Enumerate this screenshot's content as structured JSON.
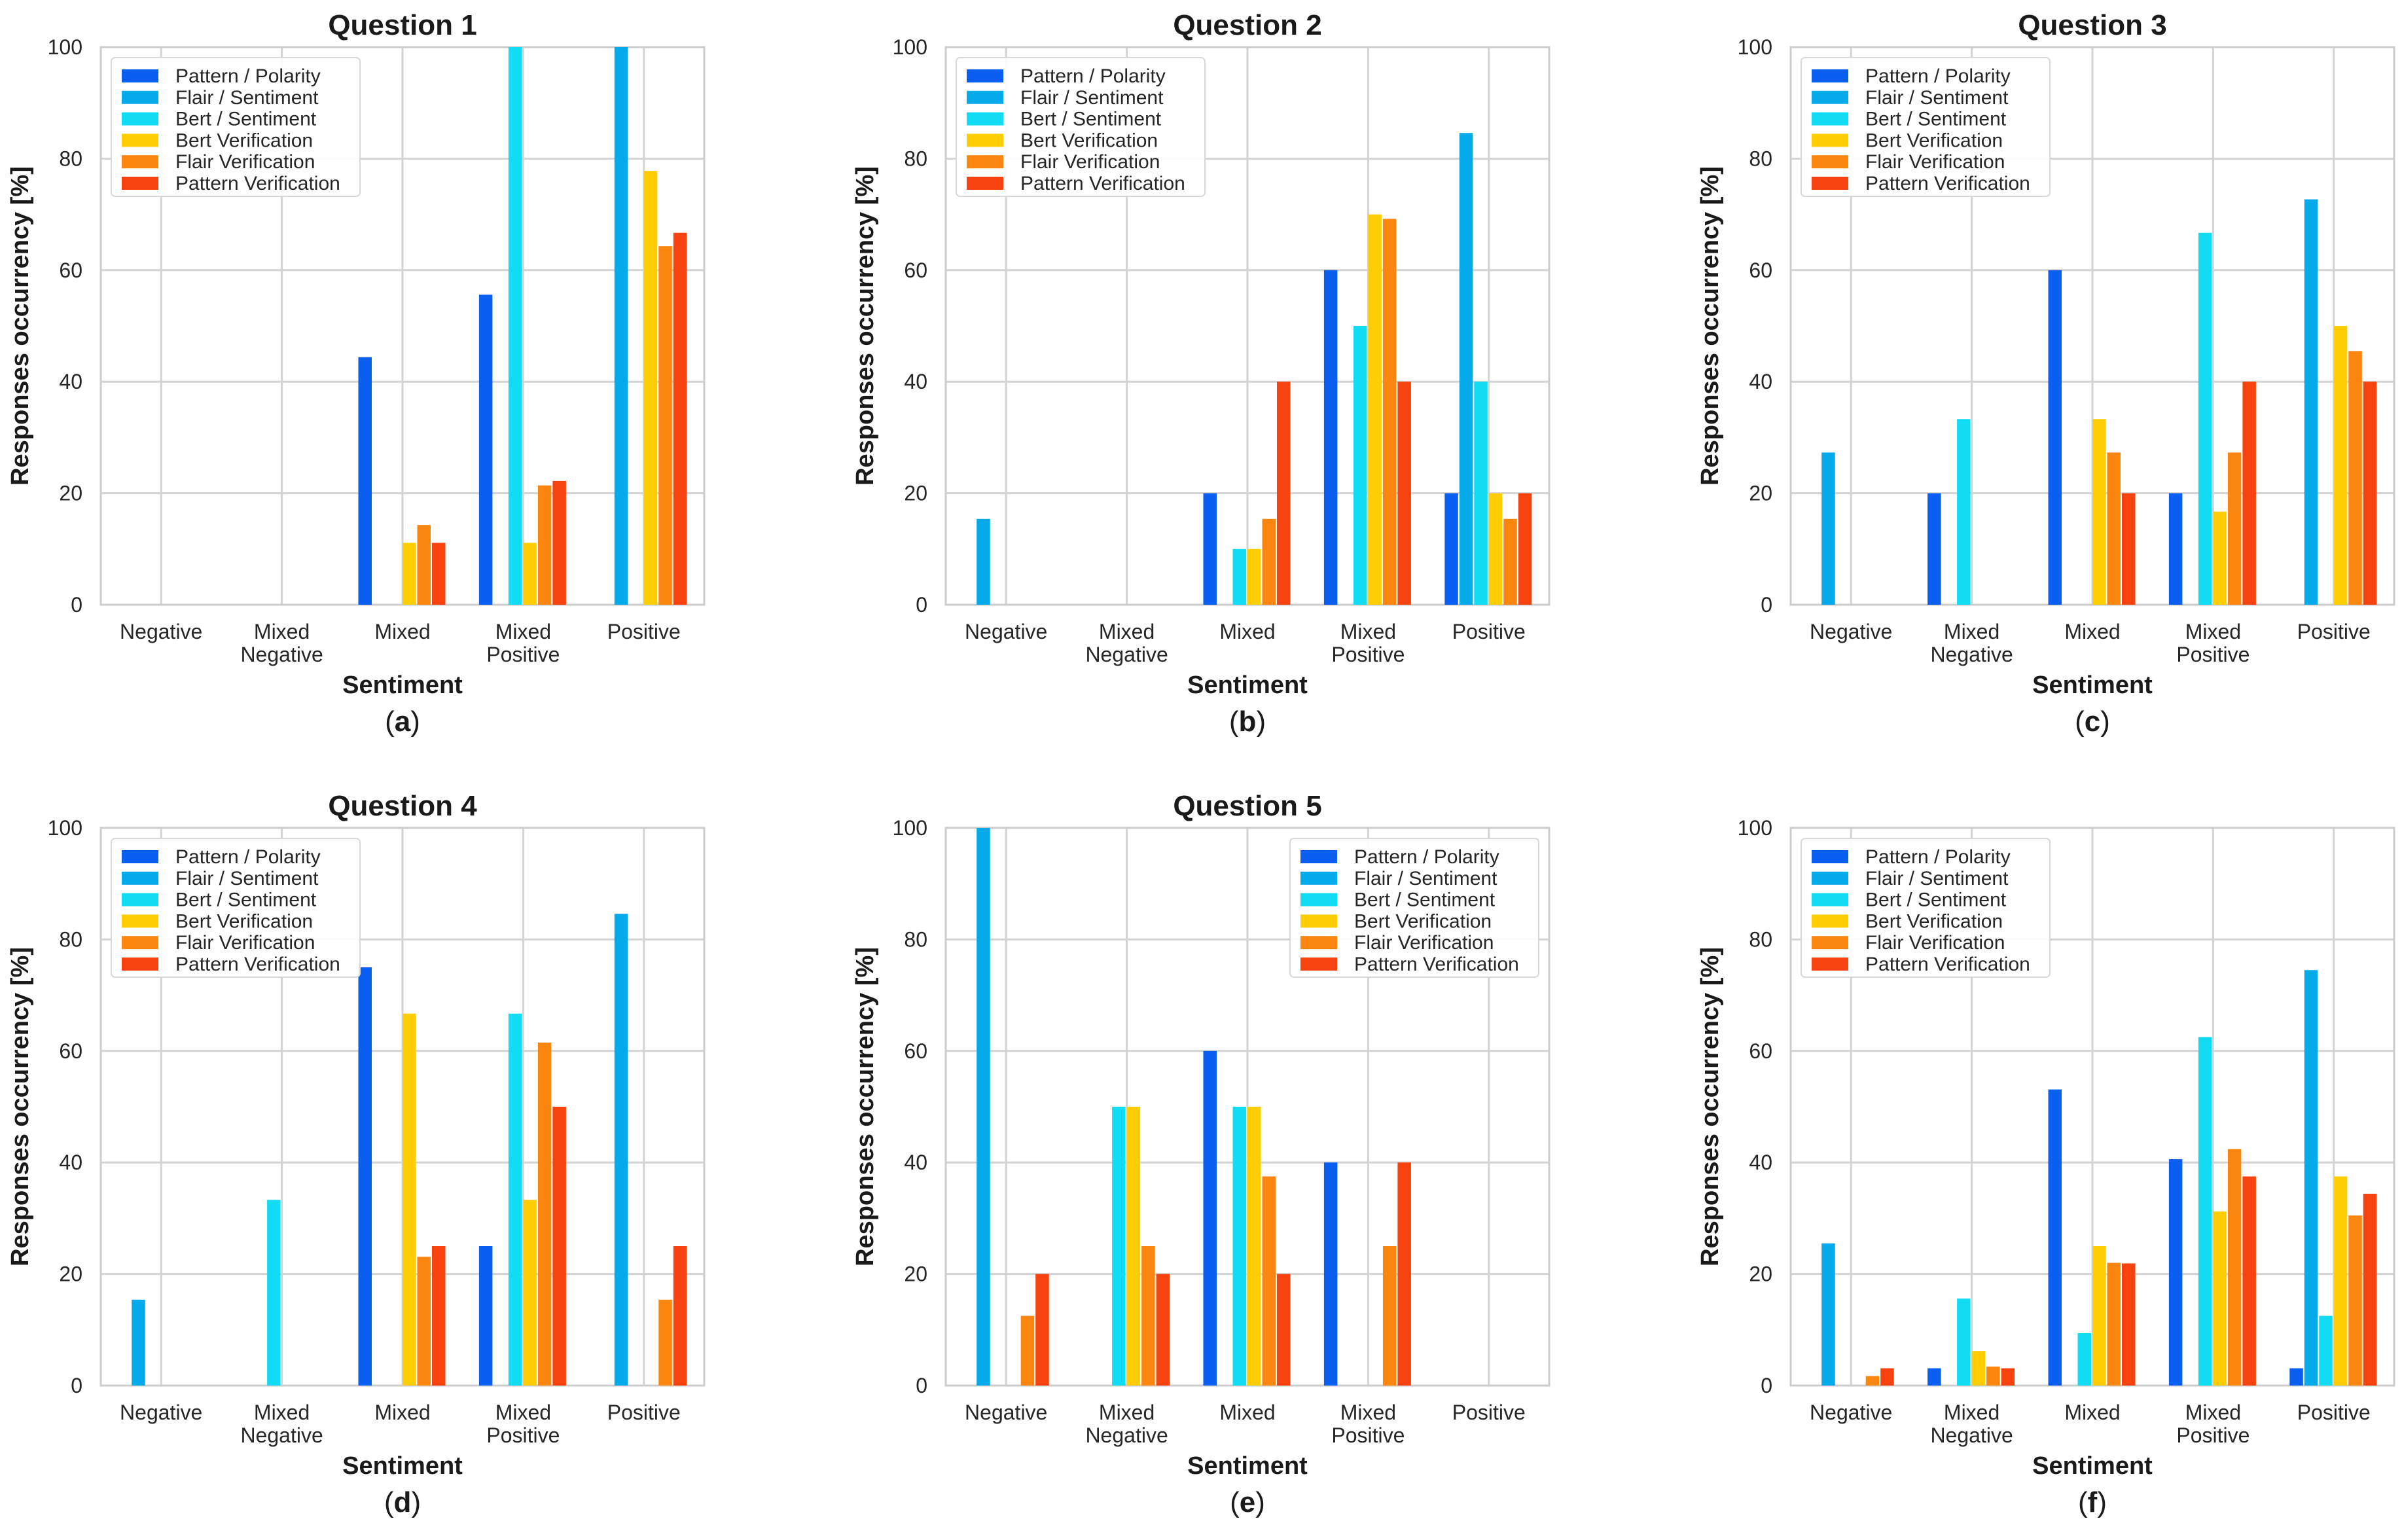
{
  "figure": {
    "series_names": [
      "Pattern / Polarity",
      "Flair / Sentiment",
      "Bert / Sentiment",
      "Bert Verification",
      "Flair Verification",
      "Pattern Verification"
    ],
    "series_colors": [
      "#0a5ff0",
      "#05aaea",
      "#12dcf4",
      "#ffcd03",
      "#fa850f",
      "#f5420f"
    ]
  },
  "chart_data": [
    {
      "type": "bar",
      "panel_label": "a",
      "title": "Question 1",
      "xlabel": "Sentiment",
      "ylabel": "Responses occurrency [%]",
      "ylim": [
        0,
        100
      ],
      "yticks": [
        0,
        20,
        40,
        60,
        80,
        100
      ],
      "categories": [
        "Negative",
        "Mixed Negative",
        "Mixed",
        "Mixed Positive",
        "Positive"
      ],
      "legend_position": "top-left",
      "grid": true,
      "series": [
        {
          "name": "Pattern / Polarity",
          "values": [
            0,
            0,
            44.4,
            55.6,
            0
          ]
        },
        {
          "name": "Flair / Sentiment",
          "values": [
            0,
            0,
            0,
            0,
            100
          ]
        },
        {
          "name": "Bert / Sentiment",
          "values": [
            0,
            0,
            0,
            100,
            0
          ]
        },
        {
          "name": "Bert Verification",
          "values": [
            0,
            0,
            11.1,
            11.1,
            77.8
          ]
        },
        {
          "name": "Flair Verification",
          "values": [
            0,
            0,
            14.3,
            21.4,
            64.3
          ]
        },
        {
          "name": "Pattern Verification",
          "values": [
            0,
            0,
            11.1,
            22.2,
            66.7
          ]
        }
      ]
    },
    {
      "type": "bar",
      "panel_label": "b",
      "title": "Question 2",
      "xlabel": "Sentiment",
      "ylabel": "Responses occurrency [%]",
      "ylim": [
        0,
        100
      ],
      "yticks": [
        0,
        20,
        40,
        60,
        80,
        100
      ],
      "categories": [
        "Negative",
        "Mixed Negative",
        "Mixed",
        "Mixed Positive",
        "Positive"
      ],
      "legend_position": "top-left",
      "grid": true,
      "series": [
        {
          "name": "Pattern / Polarity",
          "values": [
            0,
            0,
            20,
            60,
            20
          ]
        },
        {
          "name": "Flair / Sentiment",
          "values": [
            15.4,
            0,
            0,
            0,
            84.6
          ]
        },
        {
          "name": "Bert / Sentiment",
          "values": [
            0,
            0,
            10,
            50,
            40
          ]
        },
        {
          "name": "Bert Verification",
          "values": [
            0,
            0,
            10,
            70,
            20
          ]
        },
        {
          "name": "Flair Verification",
          "values": [
            0,
            0,
            15.4,
            69.2,
            15.4
          ]
        },
        {
          "name": "Pattern Verification",
          "values": [
            0,
            0,
            40,
            40,
            20
          ]
        }
      ]
    },
    {
      "type": "bar",
      "panel_label": "c",
      "title": "Question 3",
      "xlabel": "Sentiment",
      "ylabel": "Responses occurrency [%]",
      "ylim": [
        0,
        100
      ],
      "yticks": [
        0,
        20,
        40,
        60,
        80,
        100
      ],
      "categories": [
        "Negative",
        "Mixed Negative",
        "Mixed",
        "Mixed Positive",
        "Positive"
      ],
      "legend_position": "top-left",
      "grid": true,
      "series": [
        {
          "name": "Pattern / Polarity",
          "values": [
            0,
            20,
            60,
            20,
            0
          ]
        },
        {
          "name": "Flair / Sentiment",
          "values": [
            27.3,
            0,
            0,
            0,
            72.7
          ]
        },
        {
          "name": "Bert / Sentiment",
          "values": [
            0,
            33.3,
            0,
            66.7,
            0
          ]
        },
        {
          "name": "Bert Verification",
          "values": [
            0,
            0,
            33.3,
            16.7,
            50
          ]
        },
        {
          "name": "Flair Verification",
          "values": [
            0,
            0,
            27.3,
            27.3,
            45.5
          ]
        },
        {
          "name": "Pattern Verification",
          "values": [
            0,
            0,
            20,
            40,
            40
          ]
        }
      ]
    },
    {
      "type": "bar",
      "panel_label": "d",
      "title": "Question 4",
      "xlabel": "Sentiment",
      "ylabel": "Responses occurrency [%]",
      "ylim": [
        0,
        100
      ],
      "yticks": [
        0,
        20,
        40,
        60,
        80,
        100
      ],
      "categories": [
        "Negative",
        "Mixed Negative",
        "Mixed",
        "Mixed Positive",
        "Positive"
      ],
      "legend_position": "top-left",
      "grid": true,
      "series": [
        {
          "name": "Pattern / Polarity",
          "values": [
            0,
            0,
            75,
            25,
            0
          ]
        },
        {
          "name": "Flair / Sentiment",
          "values": [
            15.4,
            0,
            0,
            0,
            84.6
          ]
        },
        {
          "name": "Bert / Sentiment",
          "values": [
            0,
            33.3,
            0,
            66.7,
            0
          ]
        },
        {
          "name": "Bert Verification",
          "values": [
            0,
            0,
            66.7,
            33.3,
            0
          ]
        },
        {
          "name": "Flair Verification",
          "values": [
            0,
            0,
            23.1,
            61.5,
            15.4
          ]
        },
        {
          "name": "Pattern Verification",
          "values": [
            0,
            0,
            25,
            50,
            25
          ]
        }
      ]
    },
    {
      "type": "bar",
      "panel_label": "e",
      "title": "Question 5",
      "xlabel": "Sentiment",
      "ylabel": "Responses occurrency [%]",
      "ylim": [
        0,
        100
      ],
      "yticks": [
        0,
        20,
        40,
        60,
        80,
        100
      ],
      "categories": [
        "Negative",
        "Mixed Negative",
        "Mixed",
        "Mixed Positive",
        "Positive"
      ],
      "legend_position": "top-right",
      "grid": true,
      "series": [
        {
          "name": "Pattern / Polarity",
          "values": [
            0,
            0,
            60,
            40,
            0
          ]
        },
        {
          "name": "Flair / Sentiment",
          "values": [
            100,
            0,
            0,
            0,
            0
          ]
        },
        {
          "name": "Bert / Sentiment",
          "values": [
            0,
            50,
            50,
            0,
            0
          ]
        },
        {
          "name": "Bert Verification",
          "values": [
            0,
            50,
            50,
            0,
            0
          ]
        },
        {
          "name": "Flair Verification",
          "values": [
            12.5,
            25,
            37.5,
            25,
            0
          ]
        },
        {
          "name": "Pattern Verification",
          "values": [
            20,
            20,
            20,
            40,
            0
          ]
        }
      ]
    },
    {
      "type": "bar",
      "panel_label": "f",
      "title": "",
      "xlabel": "Sentiment",
      "ylabel": "Responses occurrency [%]",
      "ylim": [
        0,
        100
      ],
      "yticks": [
        0,
        20,
        40,
        60,
        80,
        100
      ],
      "categories": [
        "Negative",
        "Mixed Negative",
        "Mixed",
        "Mixed Positive",
        "Positive"
      ],
      "legend_position": "top-left",
      "grid": true,
      "series": [
        {
          "name": "Pattern / Polarity",
          "values": [
            0,
            3.1,
            53.1,
            40.6,
            3.1
          ]
        },
        {
          "name": "Flair / Sentiment",
          "values": [
            25.5,
            0,
            0,
            0,
            74.5
          ]
        },
        {
          "name": "Bert / Sentiment",
          "values": [
            0,
            15.6,
            9.4,
            62.5,
            12.5
          ]
        },
        {
          "name": "Bert Verification",
          "values": [
            0,
            6.2,
            25,
            31.2,
            37.5
          ]
        },
        {
          "name": "Flair Verification",
          "values": [
            1.7,
            3.4,
            22,
            42.4,
            30.5
          ]
        },
        {
          "name": "Pattern Verification",
          "values": [
            3.1,
            3.1,
            21.9,
            37.5,
            34.4
          ]
        }
      ]
    }
  ]
}
